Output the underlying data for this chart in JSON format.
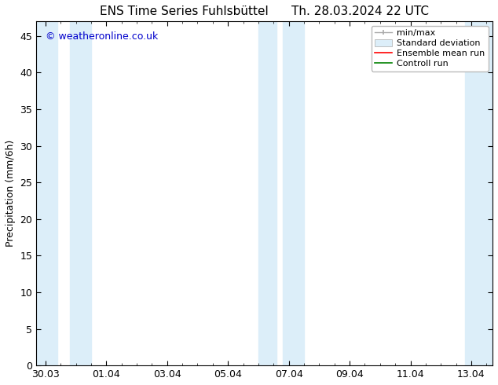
{
  "title_left": "ENS Time Series Fuhlsbüttel",
  "title_right": "Th. 28.03.2024 22 UTC",
  "ylabel": "Precipitation (mm/6h)",
  "watermark": "© weatheronline.co.uk",
  "ylim": [
    0,
    47
  ],
  "yticks": [
    0,
    5,
    10,
    15,
    20,
    25,
    30,
    35,
    40,
    45
  ],
  "xtick_labels": [
    "30.03",
    "01.04",
    "03.04",
    "05.04",
    "07.04",
    "09.04",
    "11.04",
    "13.04"
  ],
  "xtick_positions": [
    0,
    2,
    4,
    6,
    8,
    10,
    12,
    14
  ],
  "xlim": [
    -0.3,
    14.7
  ],
  "bg_color": "#ffffff",
  "plot_bg_color": "#ffffff",
  "shaded_regions": [
    [
      -0.3,
      0.4
    ],
    [
      0.8,
      1.5
    ],
    [
      7.0,
      7.6
    ],
    [
      7.8,
      8.5
    ],
    [
      13.8,
      14.7
    ]
  ],
  "shaded_color": "#dceef9",
  "legend_items": [
    {
      "label": "min/max",
      "color": "#aaaaaa",
      "type": "errbar"
    },
    {
      "label": "Standard deviation",
      "color": "#dceef9",
      "type": "box"
    },
    {
      "label": "Ensemble mean run",
      "color": "#ff0000",
      "type": "line"
    },
    {
      "label": "Controll run",
      "color": "#008000",
      "type": "line"
    }
  ],
  "font_size_title": 11,
  "font_size_axis": 9,
  "font_size_legend": 8,
  "font_size_watermark": 9,
  "grid_color": "#dddddd",
  "tick_color": "#000000",
  "axis_color": "#000000"
}
